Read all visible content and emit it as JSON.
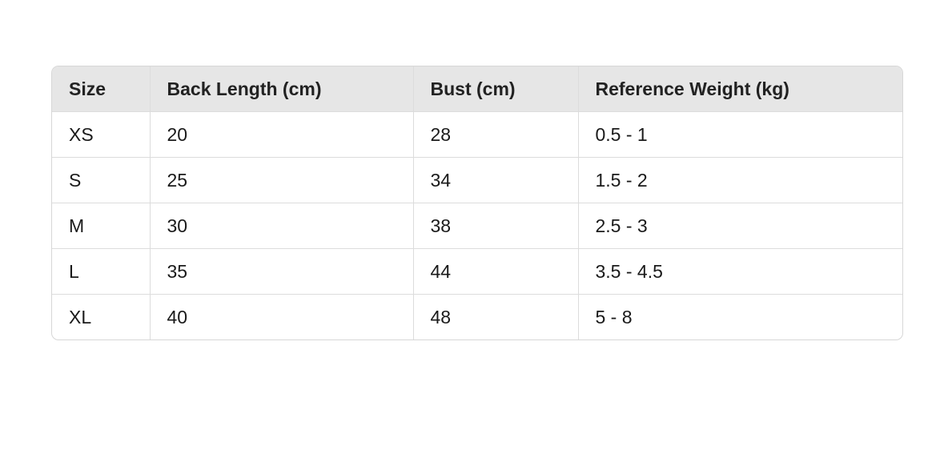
{
  "table": {
    "headers": [
      "Size",
      "Back Length (cm)",
      "Bust (cm)",
      "Reference Weight (kg)"
    ],
    "rows": [
      [
        "XS",
        "20",
        "28",
        "0.5 - 1"
      ],
      [
        "S",
        "25",
        "34",
        "1.5 - 2"
      ],
      [
        "M",
        "30",
        "38",
        "2.5 - 3"
      ],
      [
        "L",
        "35",
        "44",
        "3.5 - 4.5"
      ],
      [
        "XL",
        "40",
        "48",
        "5 - 8"
      ]
    ]
  },
  "colors": {
    "header_background": "#e6e6e6",
    "border": "#dcdcdc",
    "text": "#1a1a1a"
  }
}
